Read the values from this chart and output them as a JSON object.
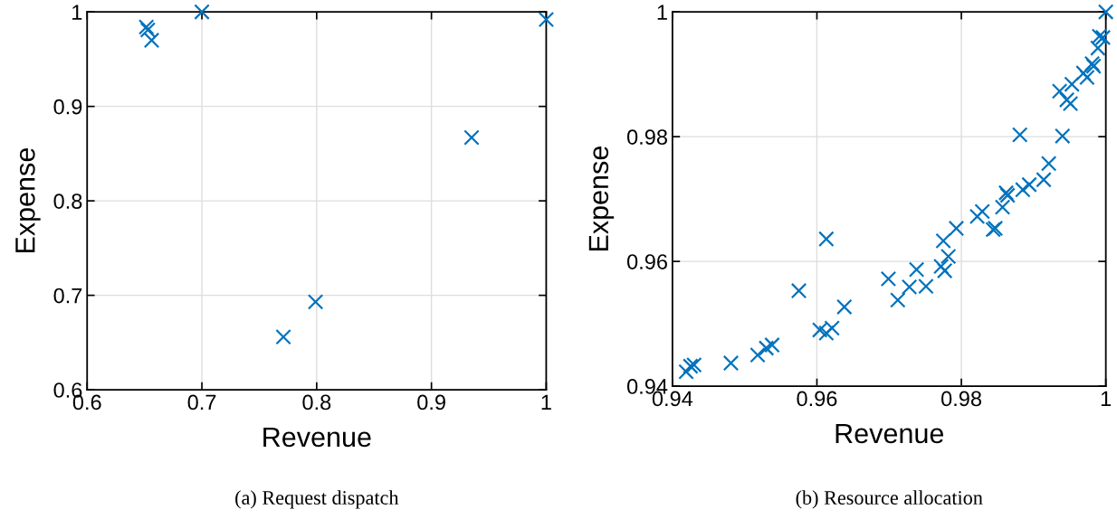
{
  "chart_data": [
    {
      "type": "scatter",
      "xlabel": "Revenue",
      "ylabel": "Expense",
      "xlim": [
        0.6,
        1
      ],
      "ylim": [
        0.6,
        1
      ],
      "xticks": [
        0.6,
        0.7,
        0.8,
        0.9,
        1
      ],
      "yticks": [
        0.6,
        0.7,
        0.8,
        0.9,
        1
      ],
      "grid": true,
      "marker": "cross",
      "annotations": [
        "(a) Request dispatch"
      ],
      "series": [
        {
          "color": "#0072bd",
          "x": [
            0.6516,
            0.6529,
            0.6562,
            0.7,
            1.0,
            0.935,
            0.799,
            0.771
          ],
          "values": [
            0.984,
            0.981,
            0.97,
            1.0,
            0.992,
            0.867,
            0.693,
            0.656
          ]
        }
      ]
    },
    {
      "type": "scatter",
      "xlabel": "Revenue",
      "ylabel": "Expense",
      "xlim": [
        0.94,
        1
      ],
      "ylim": [
        0.94,
        1
      ],
      "xticks": [
        0.94,
        0.96,
        0.98,
        1
      ],
      "yticks": [
        0.94,
        0.96,
        0.98,
        1
      ],
      "grid": true,
      "marker": "cross",
      "annotations": [
        "(b) Resource allocation"
      ],
      "series": [
        {
          "color": "#0072bd",
          "x": [
            0.9419,
            0.9425,
            0.943,
            0.9481,
            0.9518,
            0.953,
            0.9538,
            0.9575,
            0.9613,
            0.9604,
            0.9613,
            0.9621,
            0.9638,
            0.9699,
            0.9712,
            0.9728,
            0.9738,
            0.9751,
            0.9772,
            0.9777,
            0.9775,
            0.9782,
            0.9793,
            0.9822,
            0.9829,
            0.9844,
            0.9847,
            0.9857,
            0.9862,
            0.9864,
            0.9885,
            0.9894,
            0.9914,
            0.9921,
            0.9881,
            0.994,
            0.9936,
            0.9953,
            0.9946,
            0.9951,
            0.9969,
            0.9974,
            0.9981,
            0.9983,
            0.9989,
            0.9991,
            0.9996,
            1.0
          ],
          "values": [
            0.9423,
            0.9432,
            0.9434,
            0.9437,
            0.945,
            0.9461,
            0.9466,
            0.9553,
            0.9636,
            0.949,
            0.9485,
            0.9493,
            0.9527,
            0.9572,
            0.9538,
            0.9559,
            0.9587,
            0.956,
            0.9592,
            0.9585,
            0.9633,
            0.9608,
            0.9653,
            0.9672,
            0.968,
            0.9651,
            0.9653,
            0.9687,
            0.971,
            0.9706,
            0.9715,
            0.9723,
            0.9731,
            0.9757,
            0.9803,
            0.9801,
            0.9873,
            0.9884,
            0.9859,
            0.9853,
            0.9902,
            0.9895,
            0.9917,
            0.9913,
            0.9942,
            0.9961,
            0.9959,
            1.0
          ]
        }
      ]
    }
  ]
}
